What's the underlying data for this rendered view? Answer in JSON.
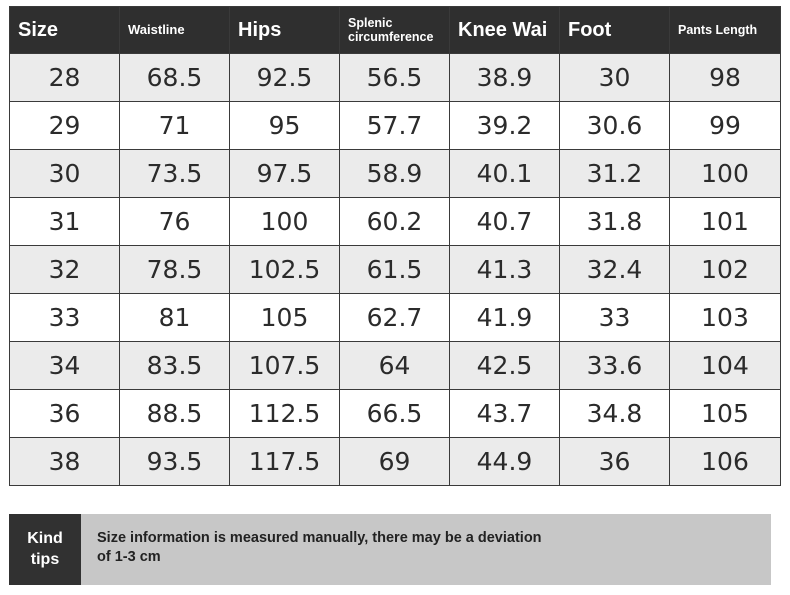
{
  "table": {
    "headers": [
      {
        "lines": [
          "Size"
        ],
        "cls": "h-big"
      },
      {
        "lines": [
          "Waistline"
        ],
        "cls": "h-small"
      },
      {
        "lines": [
          "Hips"
        ],
        "cls": "h-big"
      },
      {
        "lines": [
          "Splenic",
          "circumference"
        ],
        "cls": "h-tiny"
      },
      {
        "lines": [
          "Knee Wai"
        ],
        "cls": "h-big"
      },
      {
        "lines": [
          "Foot"
        ],
        "cls": "h-big"
      },
      {
        "lines": [
          "Pants Length"
        ],
        "cls": "h-tiny"
      }
    ],
    "rows": [
      [
        "28",
        "68.5",
        "92.5",
        "56.5",
        "38.9",
        "30",
        "98"
      ],
      [
        "29",
        "71",
        "95",
        "57.7",
        "39.2",
        "30.6",
        "99"
      ],
      [
        "30",
        "73.5",
        "97.5",
        "58.9",
        "40.1",
        "31.2",
        "100"
      ],
      [
        "31",
        "76",
        "100",
        "60.2",
        "40.7",
        "31.8",
        "101"
      ],
      [
        "32",
        "78.5",
        "102.5",
        "61.5",
        "41.3",
        "32.4",
        "102"
      ],
      [
        "33",
        "81",
        "105",
        "62.7",
        "41.9",
        "33",
        "103"
      ],
      [
        "34",
        "83.5",
        "107.5",
        "64",
        "42.5",
        "33.6",
        "104"
      ],
      [
        "36",
        "88.5",
        "112.5",
        "66.5",
        "43.7",
        "34.8",
        "105"
      ],
      [
        "38",
        "93.5",
        "117.5",
        "69",
        "44.9",
        "36",
        "106"
      ]
    ]
  },
  "tips": {
    "label_lines": [
      "Kind",
      "tips"
    ],
    "text_lines": [
      "Size information is measured manually, there may be a deviation",
      "of 1-3 cm"
    ]
  },
  "colors": {
    "header_bg": "#2f2f2f",
    "row_alt_bg": "#ebebeb",
    "tips_label_bg": "#313131",
    "tips_text_bg": "#c7c7c7"
  }
}
